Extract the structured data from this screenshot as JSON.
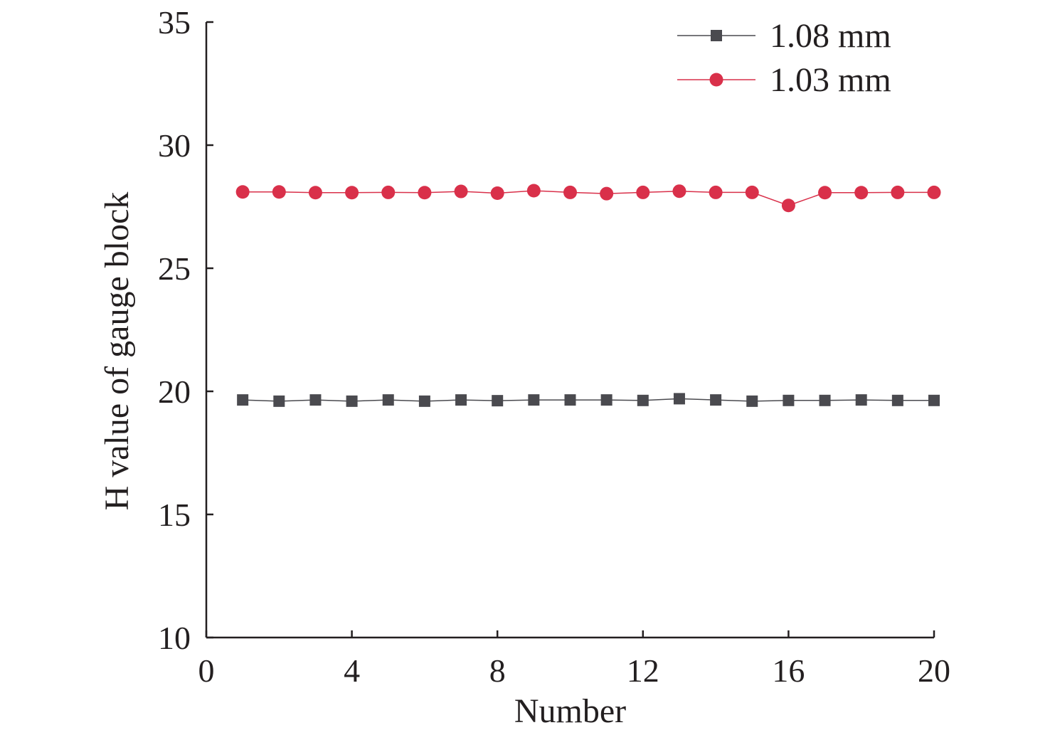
{
  "chart_data": {
    "type": "line",
    "xlabel": "Number",
    "ylabel": "H value of gauge block",
    "xlim": [
      0,
      20
    ],
    "ylim": [
      10,
      35
    ],
    "xticks": [
      0,
      4,
      8,
      12,
      16,
      20
    ],
    "yticks": [
      10,
      15,
      20,
      25,
      30,
      35
    ],
    "grid": false,
    "legend_position": "top-right",
    "x": [
      1,
      2,
      3,
      4,
      5,
      6,
      7,
      8,
      9,
      10,
      11,
      12,
      13,
      14,
      15,
      16,
      17,
      18,
      19,
      20
    ],
    "series": [
      {
        "name": "1.08 mm",
        "marker": "square",
        "color": "#4a4a4f",
        "values": [
          19.65,
          19.6,
          19.65,
          19.6,
          19.65,
          19.6,
          19.65,
          19.62,
          19.65,
          19.65,
          19.65,
          19.63,
          19.7,
          19.65,
          19.6,
          19.63,
          19.63,
          19.65,
          19.63,
          19.63
        ]
      },
      {
        "name": "1.03 mm",
        "marker": "circle",
        "color": "#d9304a",
        "values": [
          28.1,
          28.1,
          28.07,
          28.07,
          28.08,
          28.07,
          28.12,
          28.05,
          28.15,
          28.08,
          28.03,
          28.08,
          28.13,
          28.08,
          28.08,
          27.55,
          28.07,
          28.07,
          28.08,
          28.08
        ]
      }
    ]
  }
}
